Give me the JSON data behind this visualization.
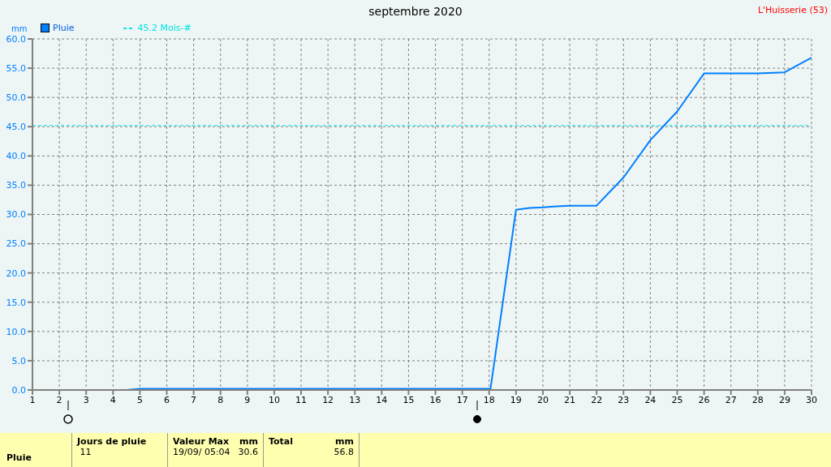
{
  "chart_data": {
    "type": "line",
    "title": "septembre 2020",
    "subtitle": "L'Huisserie (53)",
    "ylabel": "mm",
    "x": [
      1,
      4.5,
      5,
      10,
      18.05,
      19,
      19.5,
      20,
      20.5,
      21,
      22,
      22.6,
      23,
      24,
      25,
      26,
      27,
      28,
      29,
      30
    ],
    "series": [
      {
        "name": "Pluie",
        "color": "#0080ff",
        "values": [
          0,
          0,
          0.2,
          0.2,
          0.2,
          30.8,
          31.1,
          31.2,
          31.4,
          31.5,
          31.5,
          34.4,
          36.3,
          42.7,
          47.6,
          54.1,
          54.1,
          54.1,
          54.3,
          56.8
        ]
      }
    ],
    "xlim": [
      1,
      30
    ],
    "xticks": [
      1,
      2,
      3,
      4,
      5,
      6,
      7,
      8,
      9,
      10,
      11,
      12,
      13,
      14,
      15,
      16,
      17,
      18,
      19,
      20,
      21,
      22,
      23,
      24,
      25,
      26,
      27,
      28,
      29,
      30
    ],
    "ylim": [
      0,
      60
    ],
    "yticks": [
      {
        "value": 0,
        "label": "0.0"
      },
      {
        "value": 5,
        "label": "5.0"
      },
      {
        "value": 10,
        "label": "10.0"
      },
      {
        "value": 15,
        "label": "15.0"
      },
      {
        "value": 20,
        "label": "20.0"
      },
      {
        "value": 25,
        "label": "25.0"
      },
      {
        "value": 30,
        "label": "30.0"
      },
      {
        "value": 35,
        "label": "35.0"
      },
      {
        "value": 40,
        "label": "40.0"
      },
      {
        "value": 45,
        "label": "45.0"
      },
      {
        "value": 50,
        "label": "50.0"
      },
      {
        "value": 55,
        "label": "55.0"
      },
      {
        "value": 60,
        "label": "60.0"
      }
    ],
    "ref_lines": [
      {
        "axis": "y",
        "value": 45.2,
        "label": "45.2 Mois-#",
        "color": "#00e5e5",
        "line_style": "dashed"
      }
    ],
    "grid": true,
    "legend": "top left",
    "marker": "none",
    "line_style": "solid",
    "annotations": [
      "Pluie",
      "Jours de pluie",
      "11",
      "Valeur Max",
      "mm",
      "19/09/  05:04",
      "30.6",
      "Total",
      "mm",
      "56.8"
    ]
  }
}
